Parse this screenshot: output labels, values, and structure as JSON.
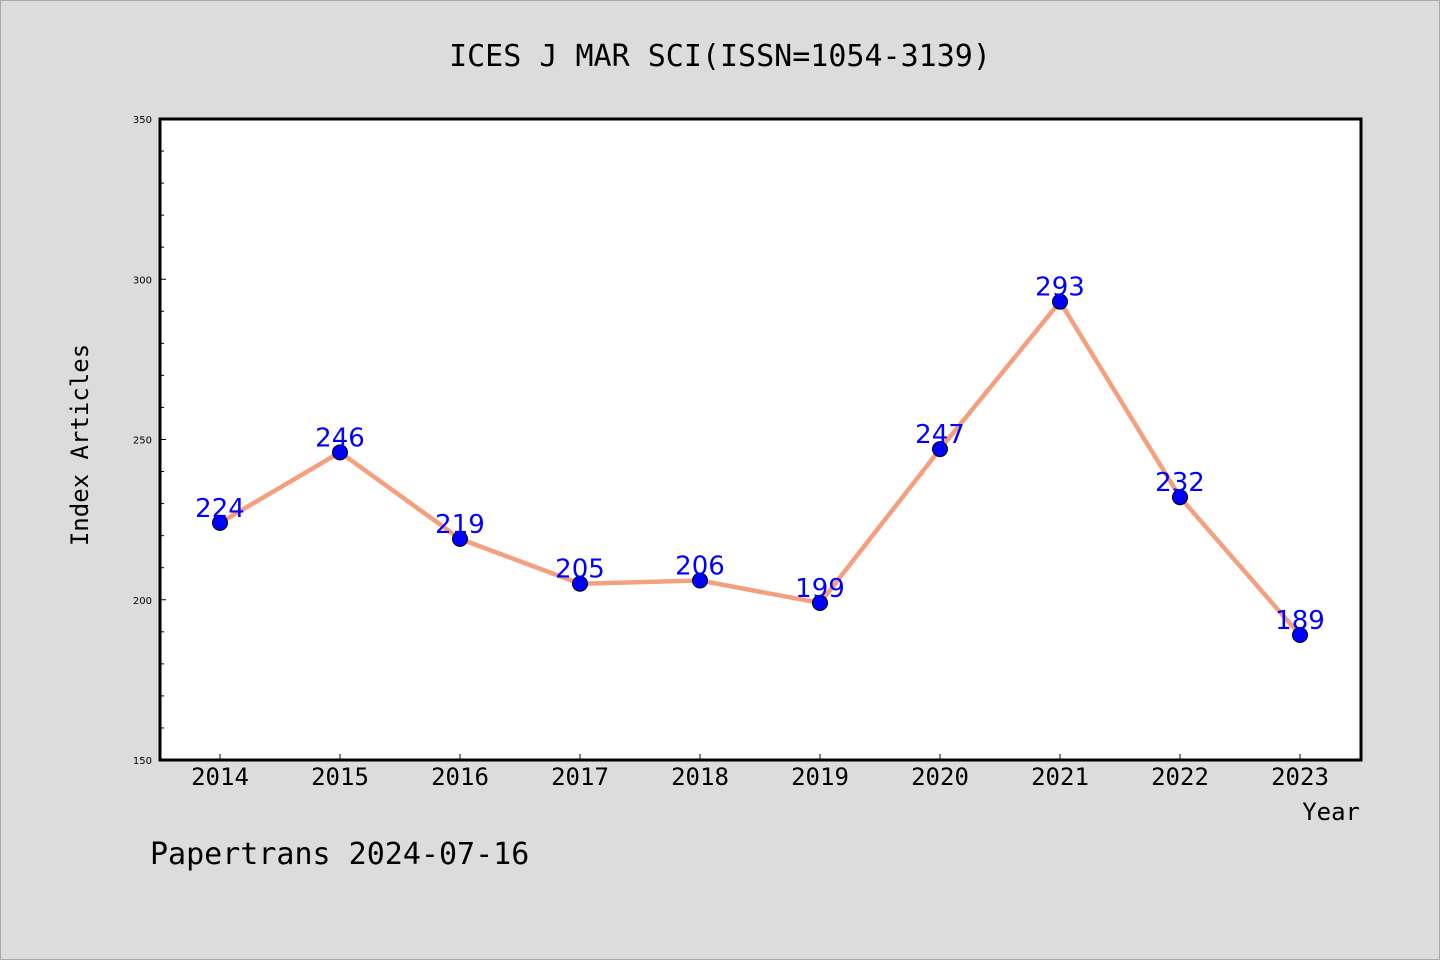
{
  "chart_data": {
    "type": "line",
    "title": "ICES J MAR SCI(ISSN=1054-3139)",
    "xlabel": "Year",
    "ylabel": "Index Articles",
    "categories": [
      "2014",
      "2015",
      "2016",
      "2017",
      "2018",
      "2019",
      "2020",
      "2021",
      "2022",
      "2023"
    ],
    "series": [
      {
        "values": [
          224,
          246,
          219,
          205,
          206,
          199,
          247,
          293,
          232,
          189
        ]
      }
    ],
    "ylim": [
      150,
      350
    ],
    "yticks": [
      150,
      200,
      250,
      300,
      350
    ],
    "grid": false,
    "colors": {
      "line": "#f4a07e",
      "marker": "#0000ff",
      "label": "#0000ff",
      "background": "#dcdcdc",
      "plot": "#ffffff"
    }
  },
  "footer": "Papertrans 2024-07-16"
}
